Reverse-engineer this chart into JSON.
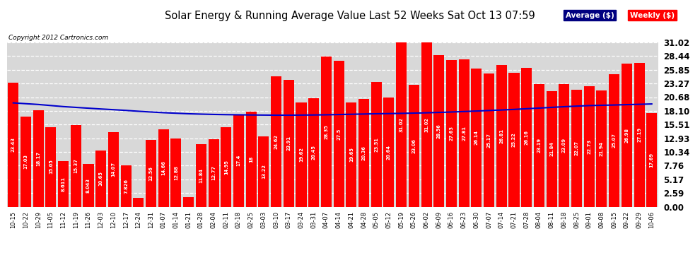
{
  "title": "Solar Energy & Running Average Value Last 52 Weeks Sat Oct 13 07:59",
  "copyright": "Copyright 2012 Cartronics.com",
  "bar_color": "#ff0000",
  "avg_line_color": "#0000cc",
  "background_color": "#ffffff",
  "plot_bg_color": "#d8d8d8",
  "grid_color": "#ffffff",
  "ylim": [
    0.0,
    31.02
  ],
  "yticks": [
    0.0,
    2.59,
    5.17,
    7.76,
    10.34,
    12.93,
    15.51,
    18.1,
    20.68,
    23.27,
    25.85,
    28.44,
    31.02
  ],
  "categories": [
    "10-15",
    "10-22",
    "10-29",
    "11-05",
    "11-12",
    "11-19",
    "11-26",
    "12-03",
    "12-10",
    "12-17",
    "12-24",
    "12-31",
    "01-07",
    "01-14",
    "01-21",
    "01-28",
    "02-04",
    "02-11",
    "02-18",
    "02-25",
    "03-03",
    "03-10",
    "03-17",
    "03-24",
    "03-31",
    "04-07",
    "04-14",
    "04-21",
    "04-28",
    "05-05",
    "05-12",
    "05-19",
    "05-26",
    "06-02",
    "06-09",
    "06-16",
    "06-23",
    "06-30",
    "07-07",
    "07-14",
    "07-21",
    "07-28",
    "08-04",
    "08-11",
    "08-18",
    "08-25",
    "09-01",
    "09-08",
    "09-15",
    "09-22",
    "09-29",
    "10-06"
  ],
  "weekly_values": [
    23.43,
    17.03,
    18.17,
    15.05,
    8.611,
    15.37,
    8.043,
    10.65,
    14.07,
    7.826,
    1.68,
    12.56,
    14.66,
    12.88,
    1.802,
    11.84,
    12.77,
    14.95,
    17.4,
    18.0,
    13.22,
    24.62,
    23.91,
    19.62,
    20.45,
    28.35,
    27.5,
    19.65,
    20.36,
    23.51,
    20.64,
    31.02,
    23.062,
    31.02,
    28.56,
    27.63,
    27.81,
    26.14,
    25.172,
    26.81,
    25.222,
    26.157,
    23.188,
    21.845,
    23.09,
    22.068,
    22.735,
    21.938,
    25.066,
    26.981,
    27.192,
    17.692
  ],
  "avg_values": [
    19.6,
    19.45,
    19.3,
    19.1,
    18.9,
    18.75,
    18.6,
    18.45,
    18.32,
    18.18,
    18.02,
    17.88,
    17.75,
    17.65,
    17.55,
    17.48,
    17.42,
    17.38,
    17.35,
    17.32,
    17.3,
    17.28,
    17.28,
    17.3,
    17.32,
    17.35,
    17.4,
    17.45,
    17.5,
    17.55,
    17.58,
    17.62,
    17.67,
    17.73,
    17.8,
    17.88,
    17.97,
    18.06,
    18.16,
    18.26,
    18.37,
    18.5,
    18.62,
    18.75,
    18.88,
    18.99,
    19.09,
    19.15,
    19.2,
    19.27,
    19.33,
    19.4
  ],
  "bar_label_fontsize": 4.8,
  "xtick_fontsize": 6.0,
  "ytick_fontsize": 8.5,
  "title_fontsize": 10.5
}
